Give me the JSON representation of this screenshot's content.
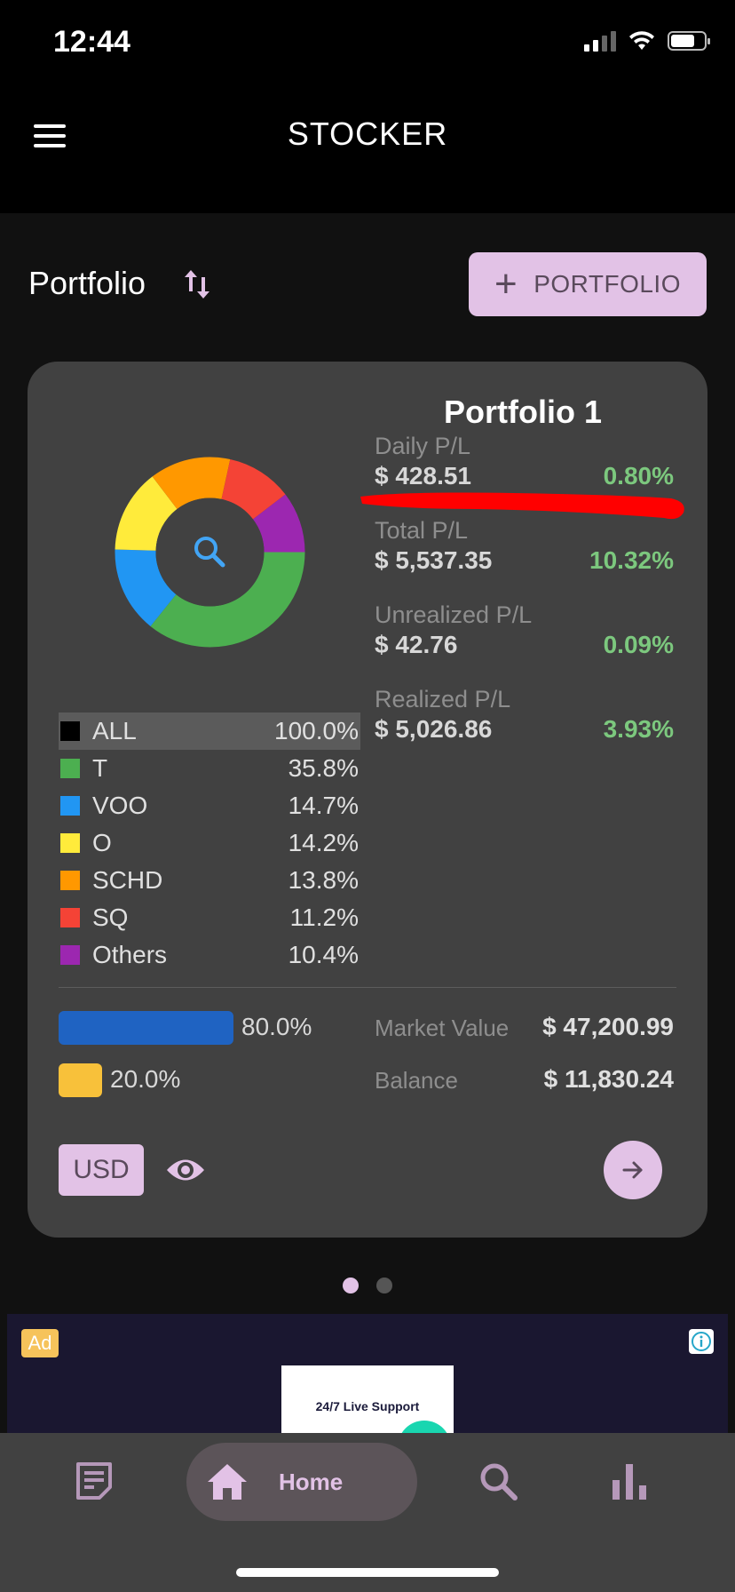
{
  "status_bar": {
    "time": "12:44"
  },
  "header": {
    "title": "STOCKER"
  },
  "portfolio_row": {
    "label": "Portfolio",
    "add_button_label": "PORTFOLIO"
  },
  "card": {
    "title": "Portfolio 1",
    "pl": [
      {
        "label": "Daily P/L",
        "value": "$ 428.51",
        "pct": "0.80%"
      },
      {
        "label": "Total P/L",
        "value": "$ 5,537.35",
        "pct": "10.32%"
      },
      {
        "label": "Unrealized P/L",
        "value": "$ 42.76",
        "pct": "0.09%"
      },
      {
        "label": "Realized P/L",
        "value": "$ 5,026.86",
        "pct": "3.93%"
      }
    ],
    "legend": [
      {
        "name": "ALL",
        "pct": "100.0%",
        "color": "#000000",
        "active": true
      },
      {
        "name": "T",
        "pct": "35.8%",
        "color": "#4caf50"
      },
      {
        "name": "VOO",
        "pct": "14.7%",
        "color": "#2196f3"
      },
      {
        "name": "O",
        "pct": "14.2%",
        "color": "#ffeb3b"
      },
      {
        "name": "SCHD",
        "pct": "13.8%",
        "color": "#ff9800"
      },
      {
        "name": "SQ",
        "pct": "11.2%",
        "color": "#f44336"
      },
      {
        "name": "Others",
        "pct": "10.4%",
        "color": "#9c27b0"
      }
    ],
    "allocation": {
      "invested_pct": "80.0%",
      "cash_pct": "20.0%",
      "invested_fraction": 0.8,
      "cash_fraction": 0.2
    },
    "market_value": {
      "label": "Market Value",
      "value": "$ 47,200.99"
    },
    "balance": {
      "label": "Balance",
      "value": "$ 11,830.24"
    },
    "currency_button": "USD"
  },
  "pager": {
    "count": 2,
    "active": 0
  },
  "ad": {
    "badge": "Ad",
    "creative_text": "24/7 Live Support"
  },
  "bottom_nav": {
    "home_label": "Home"
  },
  "colors": {
    "accent": "#e2c2e6",
    "positive": "#7cc87e",
    "card": "#414141",
    "annotation": "#ff0000"
  }
}
